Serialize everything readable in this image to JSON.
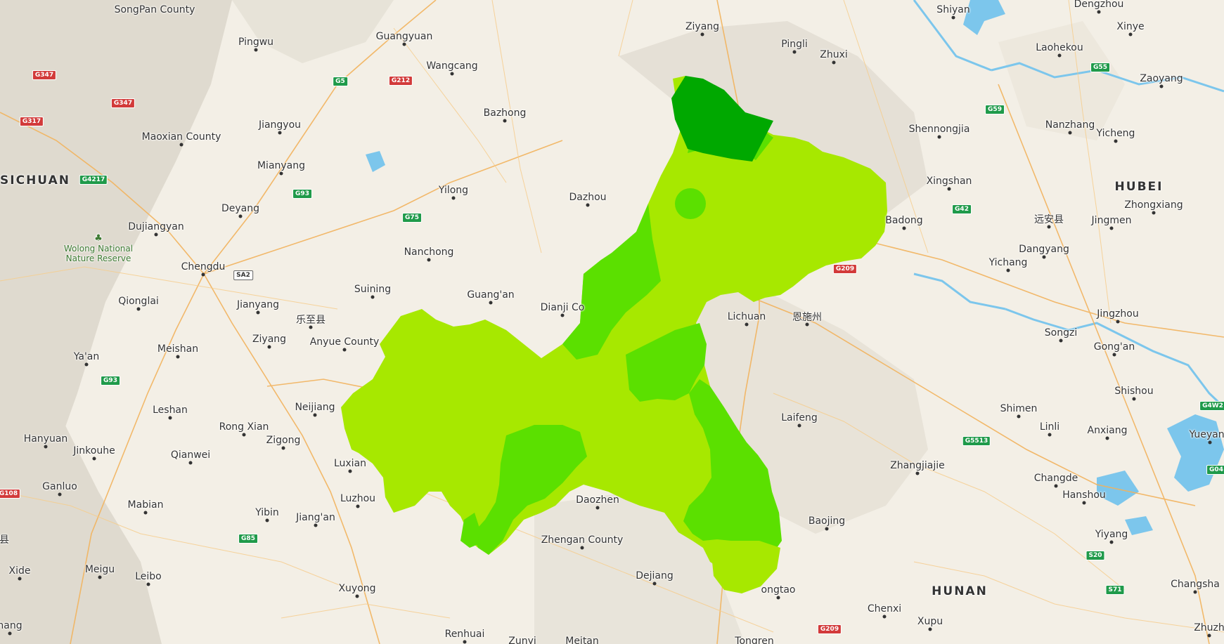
{
  "map": {
    "colors": {
      "background": "#f3efe6",
      "terrain": "#d9d3c7",
      "water": "#7cc6ec",
      "road_major": "#f2b25c",
      "road_minor": "#f6cc8c",
      "district_light": "#a7e800",
      "district_mid": "#5be000",
      "district_dark": "#00a800"
    },
    "provinces": [
      {
        "name": "SICHUAN"
      },
      {
        "name": "HUBEI"
      },
      {
        "name": "HUNAN"
      }
    ],
    "cities": [
      {
        "name": "SongPan County"
      },
      {
        "name": "Pingwu"
      },
      {
        "name": "Guangyuan"
      },
      {
        "name": "Ziyang"
      },
      {
        "name": "Shiyan"
      },
      {
        "name": "Pingli"
      },
      {
        "name": "Zhuxi"
      },
      {
        "name": "Dengzhou"
      },
      {
        "name": "Xinye"
      },
      {
        "name": "Laohekou"
      },
      {
        "name": "Zaoyang"
      },
      {
        "name": "Wangcang"
      },
      {
        "name": "Bazhong"
      },
      {
        "name": "Jiangyou"
      },
      {
        "name": "Maoxian County"
      },
      {
        "name": "Mianyang"
      },
      {
        "name": "Shennongjia"
      },
      {
        "name": "Nanzhang"
      },
      {
        "name": "Yicheng"
      },
      {
        "name": "Xingshan"
      },
      {
        "name": "Zhongxiang"
      },
      {
        "name": "Yilong"
      },
      {
        "name": "Dazhou"
      },
      {
        "name": "Deyang"
      },
      {
        "name": "Dujiangyan"
      },
      {
        "name": "Badong"
      },
      {
        "name": "远安县"
      },
      {
        "name": "Jingmen"
      },
      {
        "name": "Nanchong"
      },
      {
        "name": "Dangyang"
      },
      {
        "name": "Chengdu"
      },
      {
        "name": "Yichang"
      },
      {
        "name": "Qionglai"
      },
      {
        "name": "Suining"
      },
      {
        "name": "Guang'an"
      },
      {
        "name": "Dianji Co"
      },
      {
        "name": "Jianyang"
      },
      {
        "name": "乐至县"
      },
      {
        "name": "Lichuan"
      },
      {
        "name": "恩施州"
      },
      {
        "name": "Jingzhou"
      },
      {
        "name": "Ziyang"
      },
      {
        "name": "Anyue County"
      },
      {
        "name": "Meishan"
      },
      {
        "name": "Songzi"
      },
      {
        "name": "Gong'an"
      },
      {
        "name": "Ya'an"
      },
      {
        "name": "Shishou"
      },
      {
        "name": "Neijiang"
      },
      {
        "name": "Leshan"
      },
      {
        "name": "Shimen"
      },
      {
        "name": "Laifeng"
      },
      {
        "name": "Rong Xian"
      },
      {
        "name": "Linli"
      },
      {
        "name": "Anxiang"
      },
      {
        "name": "Hanyuan"
      },
      {
        "name": "Zigong"
      },
      {
        "name": "Yueyang"
      },
      {
        "name": "Jinkouhe"
      },
      {
        "name": "Qianwei"
      },
      {
        "name": "Luxian"
      },
      {
        "name": "Zhangjiajie"
      },
      {
        "name": "Ganluo"
      },
      {
        "name": "Changde"
      },
      {
        "name": "Luzhou"
      },
      {
        "name": "Daozhen"
      },
      {
        "name": "Hanshou"
      },
      {
        "name": "Mabian"
      },
      {
        "name": "Yibin"
      },
      {
        "name": "Jiang'an"
      },
      {
        "name": "Baojing"
      },
      {
        "name": "Yiyang"
      },
      {
        "name": "Zhengan County"
      },
      {
        "name": "Xide"
      },
      {
        "name": "Meigu"
      },
      {
        "name": "Leibo"
      },
      {
        "name": "Dejiang"
      },
      {
        "name": "ongtao"
      },
      {
        "name": "Changsha"
      },
      {
        "name": "Xuyong"
      },
      {
        "name": "Chenxi"
      },
      {
        "name": "hang"
      },
      {
        "name": "Renhuai"
      },
      {
        "name": "Zunyi"
      },
      {
        "name": "Meitan"
      },
      {
        "name": "Xupu"
      },
      {
        "name": "Tongren"
      },
      {
        "name": "Zhuzh"
      },
      {
        "name": "县"
      }
    ],
    "park": {
      "line1": "Wolong National",
      "line2": "Nature Reserve"
    },
    "shields": [
      {
        "code": "G347",
        "kind": "national"
      },
      {
        "code": "G347",
        "kind": "national"
      },
      {
        "code": "G317",
        "kind": "national"
      },
      {
        "code": "G4217",
        "kind": "expressway"
      },
      {
        "code": "G5",
        "kind": "expressway"
      },
      {
        "code": "G212",
        "kind": "national"
      },
      {
        "code": "G93",
        "kind": "expressway"
      },
      {
        "code": "G75",
        "kind": "expressway"
      },
      {
        "code": "SA2",
        "kind": "provincial"
      },
      {
        "code": "G93",
        "kind": "expressway"
      },
      {
        "code": "G85",
        "kind": "expressway"
      },
      {
        "code": "G108",
        "kind": "national"
      },
      {
        "code": "G55",
        "kind": "expressway"
      },
      {
        "code": "G59",
        "kind": "expressway"
      },
      {
        "code": "G42",
        "kind": "expressway"
      },
      {
        "code": "G209",
        "kind": "national"
      },
      {
        "code": "G5513",
        "kind": "expressway"
      },
      {
        "code": "G4W2",
        "kind": "expressway"
      },
      {
        "code": "G04",
        "kind": "expressway"
      },
      {
        "code": "S20",
        "kind": "expressway"
      },
      {
        "code": "S71",
        "kind": "expressway"
      },
      {
        "code": "G209",
        "kind": "national"
      }
    ]
  }
}
